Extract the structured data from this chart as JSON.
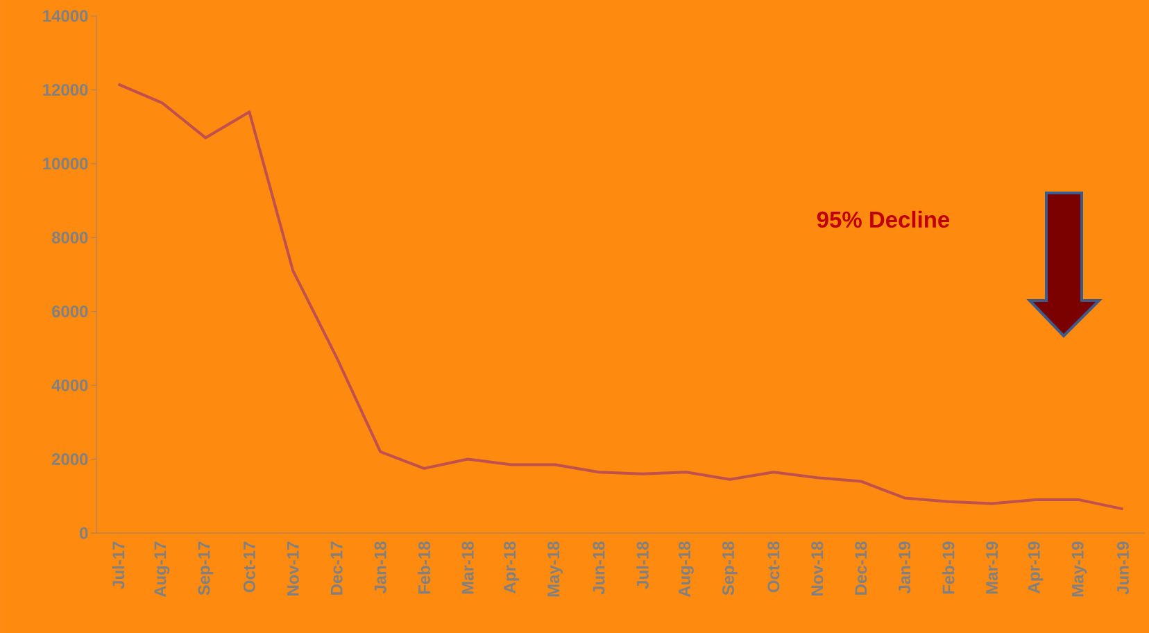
{
  "chart_data": {
    "type": "line",
    "categories": [
      "Jul-17",
      "Aug-17",
      "Sep-17",
      "Oct-17",
      "Nov-17",
      "Dec-17",
      "Jan-18",
      "Feb-18",
      "Mar-18",
      "Apr-18",
      "May-18",
      "Jun-18",
      "Jul-18",
      "Aug-18",
      "Sep-18",
      "Oct-18",
      "Nov-18",
      "Dec-18",
      "Jan-19",
      "Feb-19",
      "Mar-19",
      "Apr-19",
      "May-19",
      "Jun-19"
    ],
    "series": [
      {
        "color": "#c0504d",
        "values": [
          12150,
          11650,
          10700,
          11400,
          7100,
          4750,
          2200,
          1750,
          2000,
          1850,
          1850,
          1650,
          1600,
          1650,
          1450,
          1650,
          1500,
          1400,
          950,
          850,
          800,
          900,
          900,
          650
        ]
      }
    ],
    "ylim": [
      0,
      14000
    ],
    "yticks": [
      0,
      2000,
      4000,
      6000,
      8000,
      10000,
      12000,
      14000
    ],
    "annotations": [
      "95% Decline"
    ],
    "grid": false,
    "marker": "none",
    "line_style": "solid"
  }
}
